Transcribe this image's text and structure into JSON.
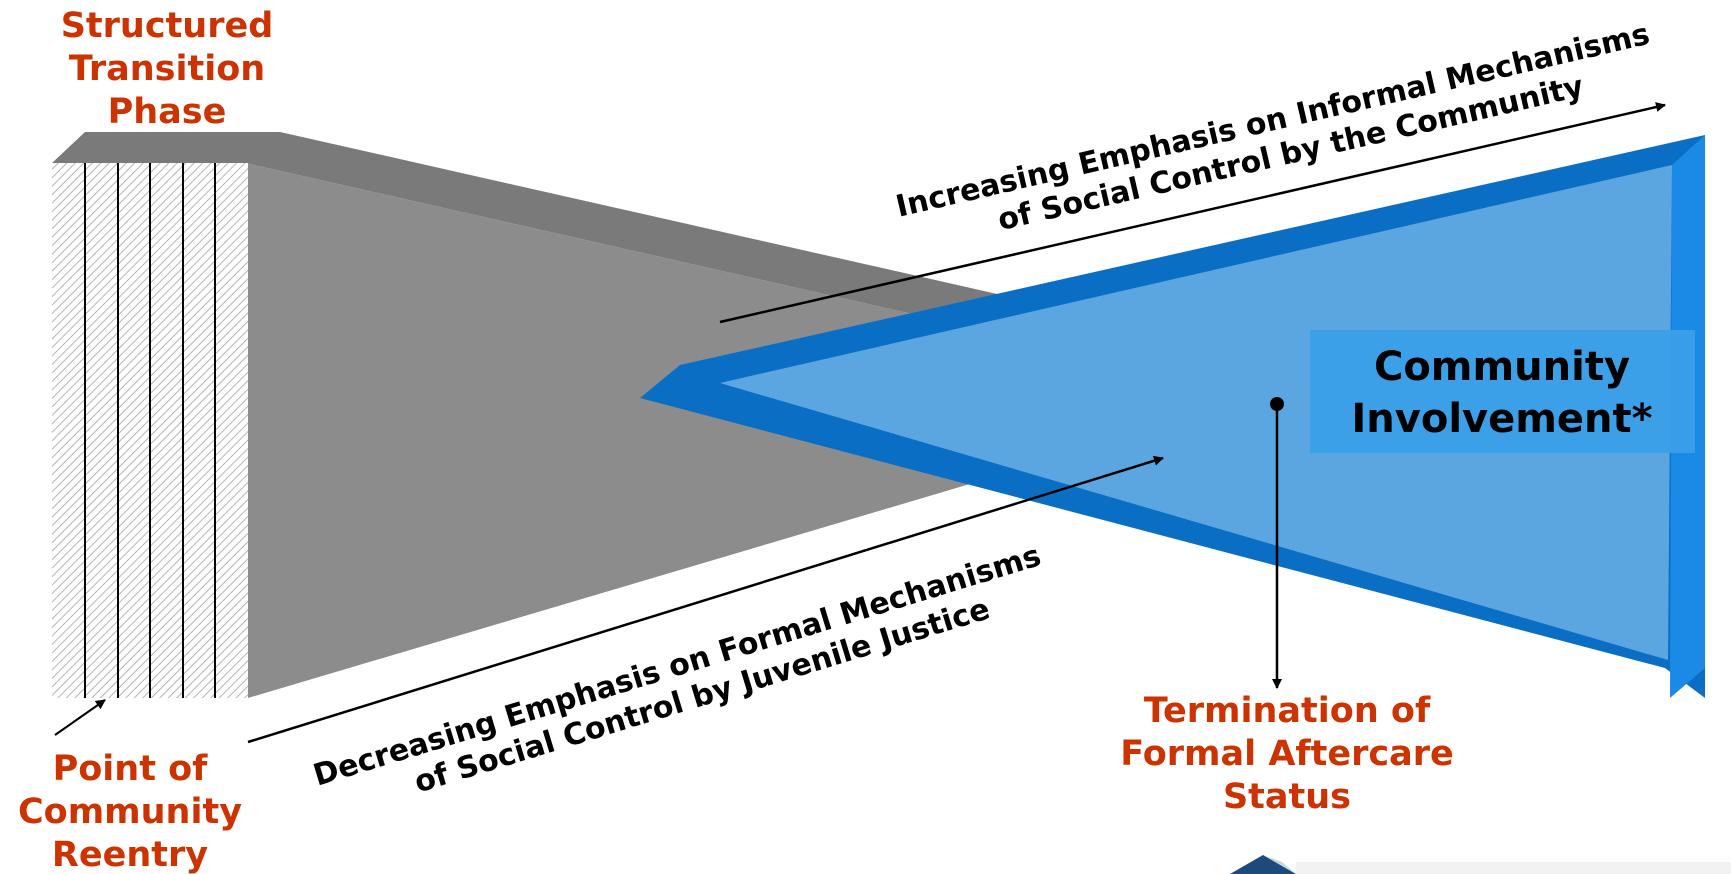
{
  "labels": {
    "structured_transition": [
      "Structured",
      "Transition",
      "Phase"
    ],
    "point_of_reentry": [
      "Point of",
      "Community",
      "Reentry"
    ],
    "termination": [
      "Termination of",
      "Formal Aftercare",
      "Status"
    ],
    "community_involvement": [
      "Community",
      "Involvement*"
    ],
    "increasing_emphasis": [
      "Increasing Emphasis on Informal Mechanisms",
      "of Social Control by the Community"
    ],
    "decreasing_emphasis": [
      "Decreasing Emphasis on Formal Mechanisms",
      "of Social Control by Juvenile Justice"
    ]
  },
  "colors": {
    "label_orange": "#cc3300",
    "gray_wedge": "#8c8c8c",
    "blue_wedge": "#5aa5e0",
    "blue_frame": "#0a6fc4",
    "box_blue": "#3a9fe8"
  }
}
